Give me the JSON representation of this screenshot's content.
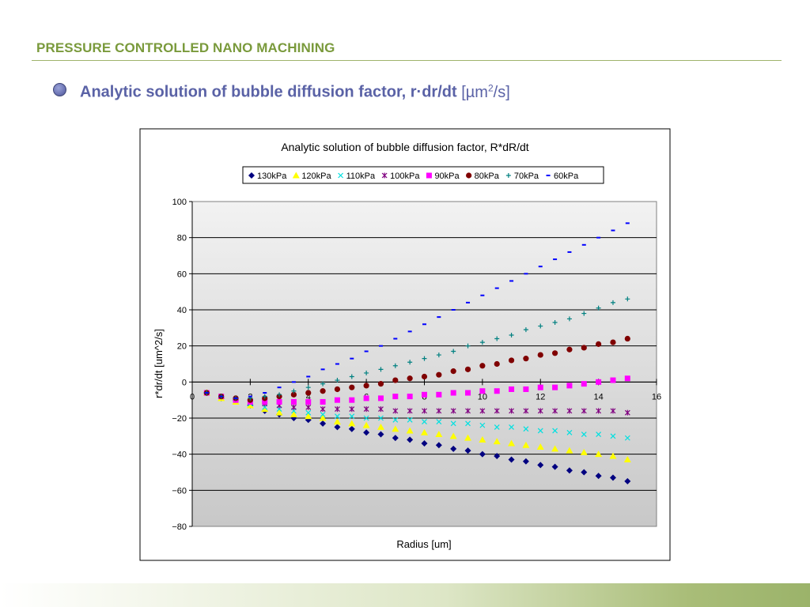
{
  "slide": {
    "header_title": "PRESSURE CONTROLLED NANO MACHINING",
    "subtitle_main": "Analytic solution of bubble diffusion factor, r·dr/dt",
    "subtitle_unit_prefix": "[µm",
    "subtitle_unit_sup": "2",
    "subtitle_unit_suffix": "/s]"
  },
  "colors": {
    "header": "#7a9a3c",
    "subtitle": "#5a62a6",
    "plot_bg_top": "#f2f2f2",
    "plot_bg_bottom": "#c8c8c8"
  },
  "chart_data": {
    "type": "scatter",
    "title": "Analytic solution of bubble diffusion factor, R*dR/dt",
    "xlabel": "Radius [um]",
    "ylabel": "r*dr/dt [um^2/s]",
    "xlim": [
      0,
      16
    ],
    "ylim": [
      -80,
      100
    ],
    "xticks": [
      0,
      2,
      4,
      6,
      8,
      10,
      12,
      14,
      16
    ],
    "yticks": [
      -80,
      -60,
      -40,
      -20,
      0,
      20,
      40,
      60,
      80,
      100
    ],
    "grid": "horizontal",
    "legend_position": "top",
    "x": [
      0.5,
      1.0,
      1.5,
      2.0,
      2.5,
      3.0,
      3.5,
      4.0,
      4.5,
      5.0,
      5.5,
      6.0,
      6.5,
      7.0,
      7.5,
      8.0,
      8.5,
      9.0,
      9.5,
      10.0,
      10.5,
      11.0,
      11.5,
      12.0,
      12.5,
      13.0,
      13.5,
      14.0,
      14.5,
      15.0
    ],
    "series": [
      {
        "name": "130kPa",
        "color": "#000080",
        "marker": "diamond",
        "values": [
          -6,
          -9,
          -10,
          -13,
          -16,
          -18,
          -20,
          -21,
          -23,
          -25,
          -26,
          -28,
          -29,
          -31,
          -32,
          -34,
          -35,
          -37,
          -38,
          -40,
          -41,
          -43,
          -44,
          -46,
          -47,
          -49,
          -50,
          -52,
          -53,
          -55
        ]
      },
      {
        "name": "120kPa",
        "color": "#ffff00",
        "marker": "triangle",
        "values": [
          -6,
          -9,
          -11,
          -13,
          -15,
          -17,
          -18,
          -19,
          -20,
          -22,
          -23,
          -24,
          -25,
          -26,
          -27,
          -28,
          -29,
          -30,
          -31,
          -32,
          -33,
          -34,
          -35,
          -36,
          -37,
          -38,
          -39,
          -40,
          -41,
          -43
        ]
      },
      {
        "name": "110kPa",
        "color": "#00e0e0",
        "marker": "x",
        "values": [
          -6,
          -8,
          -10,
          -12,
          -14,
          -15,
          -16,
          -17,
          -18,
          -19,
          -19,
          -20,
          -20,
          -21,
          -21,
          -22,
          -22,
          -23,
          -23,
          -24,
          -25,
          -25,
          -26,
          -27,
          -27,
          -28,
          -29,
          -29,
          -30,
          -31
        ]
      },
      {
        "name": "100kPa",
        "color": "#800080",
        "marker": "star",
        "values": [
          -6,
          -8,
          -10,
          -11,
          -12,
          -13,
          -14,
          -14,
          -15,
          -15,
          -15,
          -15,
          -15,
          -16,
          -16,
          -16,
          -16,
          -16,
          -16,
          -16,
          -16,
          -16,
          -16,
          -16,
          -16,
          -16,
          -16,
          -16,
          -16,
          -17
        ]
      },
      {
        "name": "90kPa",
        "color": "#ff00ff",
        "marker": "square",
        "values": [
          -6,
          -8,
          -10,
          -11,
          -11,
          -11,
          -11,
          -11,
          -11,
          -10,
          -10,
          -9,
          -9,
          -8,
          -8,
          -7,
          -7,
          -6,
          -6,
          -5,
          -5,
          -4,
          -4,
          -3,
          -3,
          -2,
          -1,
          0,
          1,
          2
        ]
      },
      {
        "name": "80kPa",
        "color": "#800000",
        "marker": "circle",
        "values": [
          -6,
          -8,
          -9,
          -10,
          -9,
          -8,
          -7,
          -6,
          -5,
          -4,
          -3,
          -2,
          -1,
          1,
          2,
          3,
          4,
          6,
          7,
          9,
          10,
          12,
          13,
          15,
          16,
          18,
          19,
          21,
          22,
          24
        ]
      },
      {
        "name": "70kPa",
        "color": "#008080",
        "marker": "plus",
        "values": [
          -6,
          -8,
          -9,
          -9,
          -8,
          -7,
          -5,
          -3,
          -1,
          1,
          3,
          5,
          7,
          9,
          11,
          13,
          15,
          17,
          20,
          22,
          24,
          26,
          29,
          31,
          33,
          35,
          38,
          41,
          44,
          46
        ]
      },
      {
        "name": "60kPa",
        "color": "#0000ff",
        "marker": "dash",
        "values": [
          -6,
          -8,
          -9,
          -8,
          -6,
          -3,
          0,
          3,
          7,
          10,
          13,
          17,
          20,
          24,
          28,
          32,
          36,
          40,
          44,
          48,
          52,
          56,
          60,
          64,
          68,
          72,
          76,
          80,
          84,
          88
        ]
      }
    ]
  }
}
